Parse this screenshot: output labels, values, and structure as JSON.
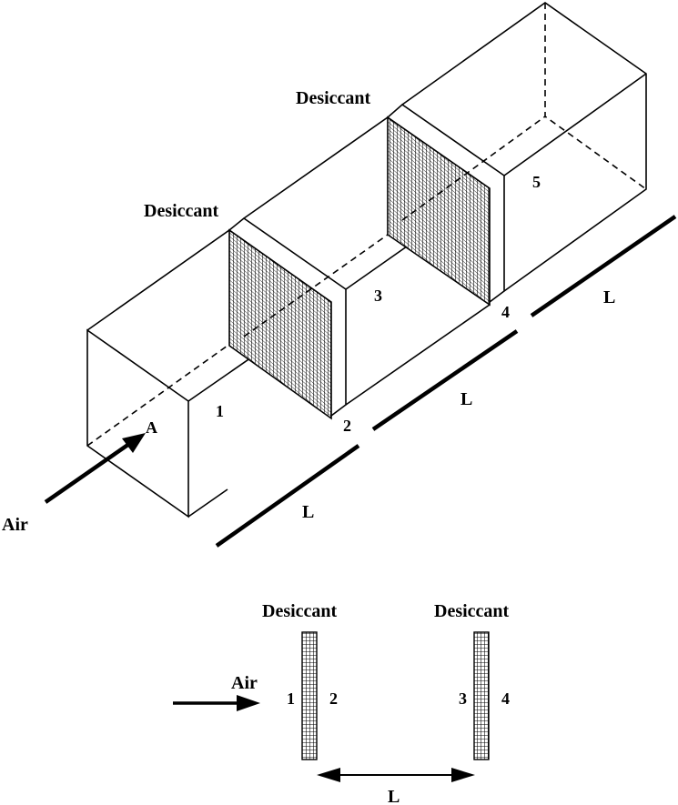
{
  "isometric": {
    "desiccant_label_1": "Desiccant",
    "desiccant_label_2": "Desiccant",
    "air_label": "Air",
    "point_a": "A",
    "station_1": "1",
    "station_2": "2",
    "station_3": "3",
    "station_4": "4",
    "station_5": "5",
    "length_label_1": "L",
    "length_label_2": "L",
    "length_label_3": "L"
  },
  "section": {
    "desiccant_label_left": "Desiccant",
    "desiccant_label_right": "Desiccant",
    "air_label": "Air",
    "station_1": "1",
    "station_2": "2",
    "station_3": "3",
    "station_4": "4",
    "length_label": "L"
  },
  "colors": {
    "line": "#000000",
    "background": "#ffffff",
    "mesh": "#000000"
  }
}
